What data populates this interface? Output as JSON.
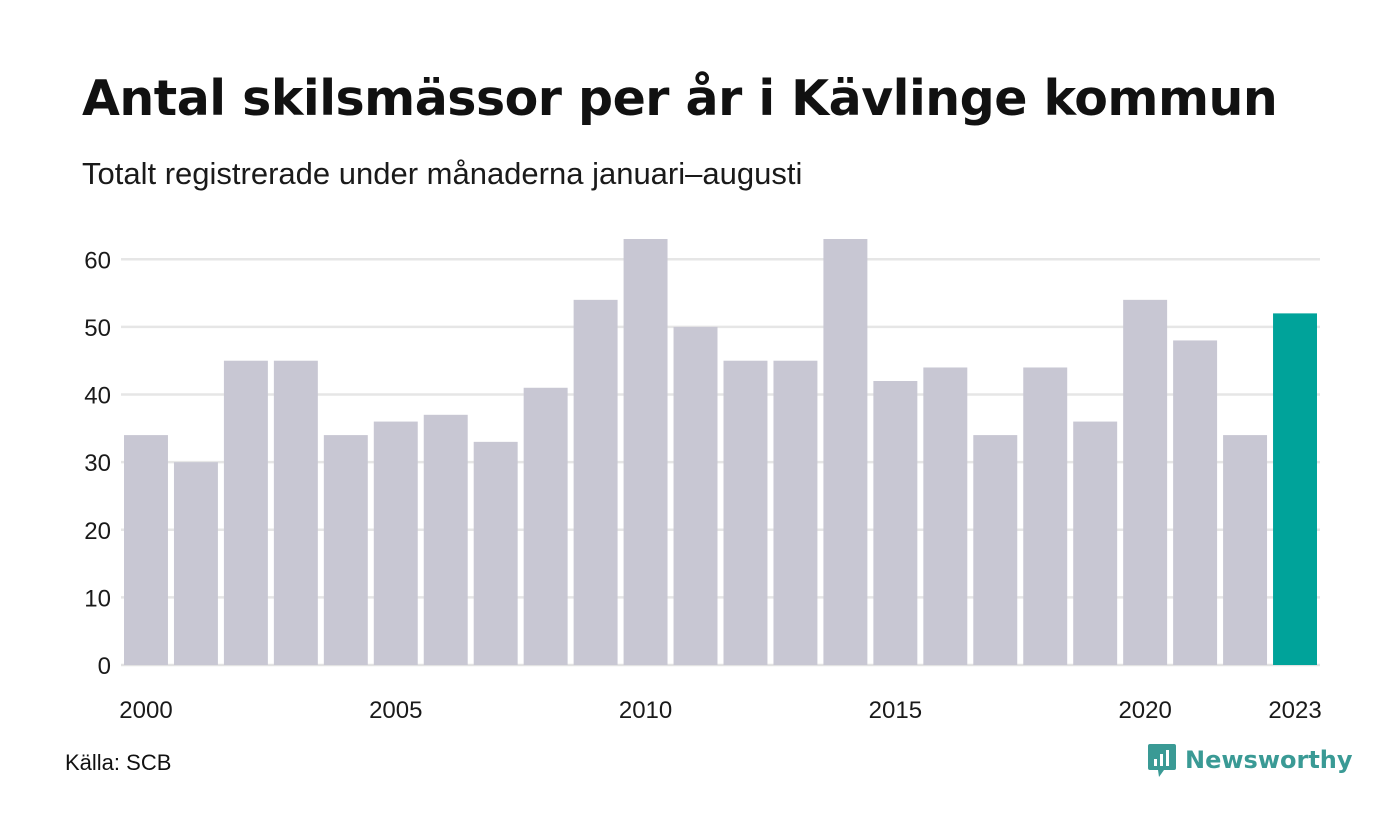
{
  "title": "Antal skilsmässor per år i Kävlinge kommun",
  "subtitle": "Totalt registrerade under månaderna januari–augusti",
  "source": "Källa: SCB",
  "brand": {
    "name": "Newsworthy",
    "color": "#3a9a95",
    "icon": "newsworthy-logo-icon"
  },
  "colors": {
    "bar": "#c8c7d3",
    "highlight": "#00a39a",
    "grid": "#e6e6e6"
  },
  "chart_data": {
    "type": "bar",
    "title": "Antal skilsmässor per år i Kävlinge kommun",
    "subtitle": "Totalt registrerade under månaderna januari–augusti",
    "xlabel": "",
    "ylabel": "",
    "x": [
      2000,
      2001,
      2002,
      2003,
      2004,
      2005,
      2006,
      2007,
      2008,
      2009,
      2010,
      2011,
      2012,
      2013,
      2014,
      2015,
      2016,
      2017,
      2018,
      2019,
      2020,
      2021,
      2022,
      2023
    ],
    "values": [
      34,
      30,
      45,
      45,
      34,
      36,
      37,
      33,
      41,
      54,
      63,
      50,
      45,
      45,
      63,
      42,
      44,
      34,
      44,
      36,
      54,
      48,
      34,
      52
    ],
    "highlight": [
      2023
    ],
    "x_tick_labels": [
      "2000",
      "2005",
      "2010",
      "2015",
      "2020",
      "2023"
    ],
    "y_ticks": [
      0,
      10,
      20,
      30,
      40,
      50,
      60
    ],
    "ylim": [
      0,
      63
    ],
    "grid": true,
    "legend": false
  }
}
